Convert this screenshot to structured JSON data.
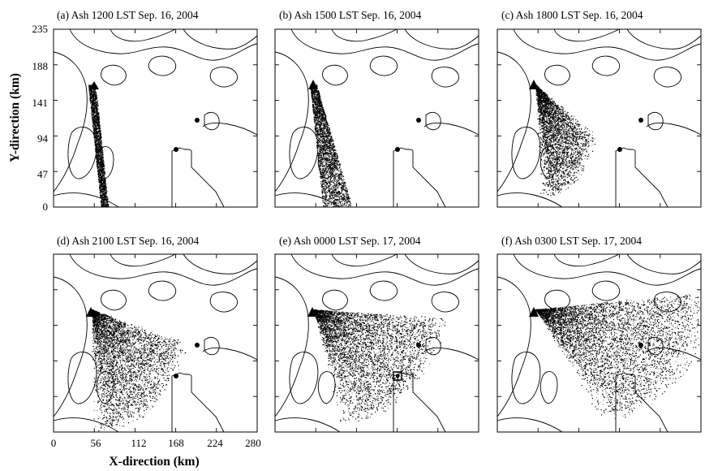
{
  "figure": {
    "xlabel": "X-direction (km)",
    "ylabel": "Y-direction (km)",
    "xticks": [
      "0",
      "56",
      "112",
      "168",
      "224",
      "280"
    ],
    "yticks": [
      "235",
      "188",
      "141",
      "94",
      "47",
      "0"
    ],
    "xrange": [
      0,
      280
    ],
    "yrange": [
      0,
      235
    ],
    "panels": [
      {
        "title": "(a)  Ash  1200 LST Sep. 16, 2004",
        "spread": 0.2
      },
      {
        "title": "(b)  Ash  1500 LST Sep. 16, 2004",
        "spread": 0.35
      },
      {
        "title": "(c)  Ash  1800 LST Sep. 16, 2004",
        "spread": 0.55
      },
      {
        "title": "(d)  Ash  2100 LST Sep. 16, 2004",
        "spread": 0.7
      },
      {
        "title": "(e)  Ash  0000 LST Sep. 17, 2004",
        "spread": 0.8
      },
      {
        "title": "(f)  Ash  0300 LST Sep. 17, 2004",
        "spread": 0.95
      }
    ],
    "colors": {
      "ink": "#000000",
      "background": "#ffffff"
    }
  }
}
